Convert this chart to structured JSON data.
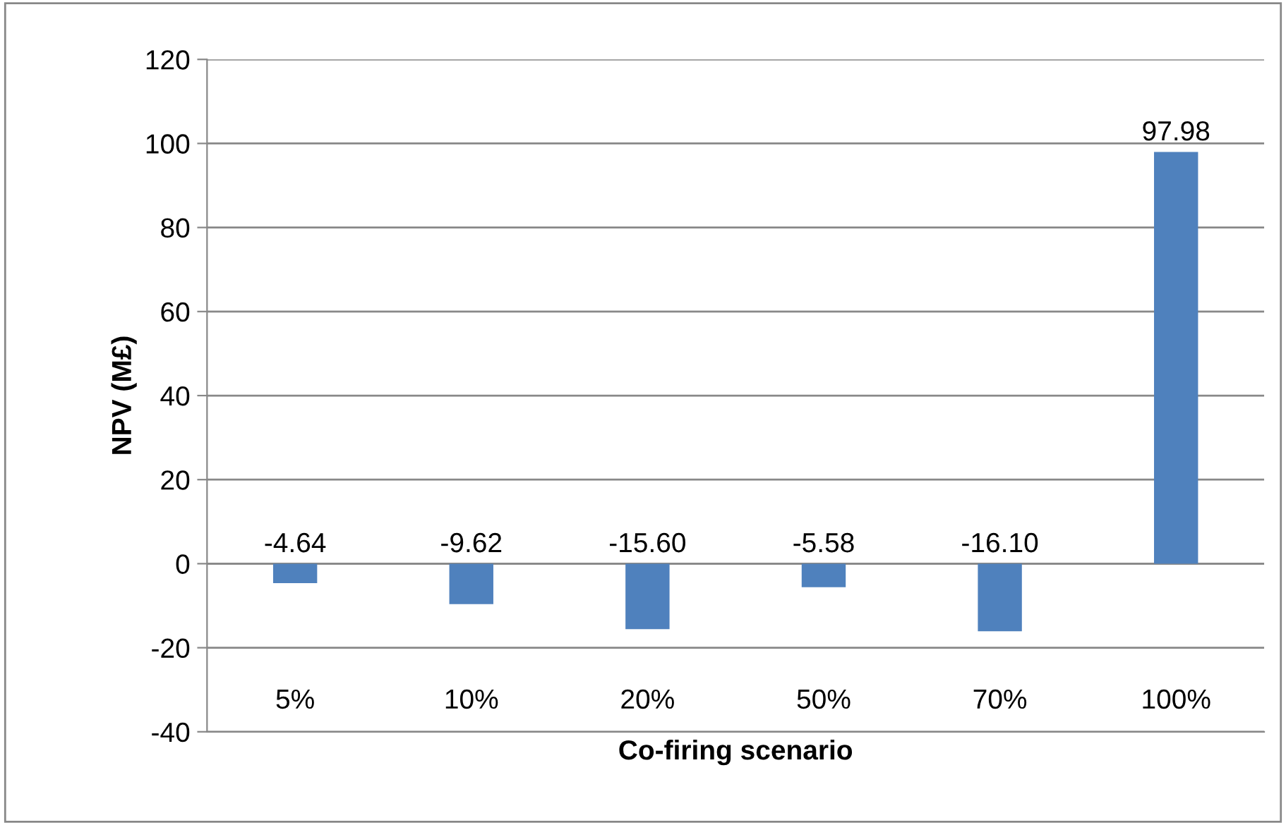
{
  "chart_data": {
    "type": "bar",
    "xlabel": "Co-firing scenario",
    "ylabel": "NPV (M£)",
    "categories": [
      "5%",
      "10%",
      "20%",
      "50%",
      "70%",
      "100%"
    ],
    "values": [
      -4.64,
      -9.62,
      -15.6,
      -5.58,
      -16.1,
      97.98
    ],
    "value_labels": [
      "-4.64",
      "-9.62",
      "-15.60",
      "-5.58",
      "-16.10",
      "97.98"
    ],
    "color": "#4f81bd",
    "ylim": [
      -40,
      120
    ],
    "yticks": [
      -40,
      -20,
      0,
      20,
      40,
      60,
      80,
      100,
      120
    ],
    "grid": "y",
    "legend": false
  }
}
